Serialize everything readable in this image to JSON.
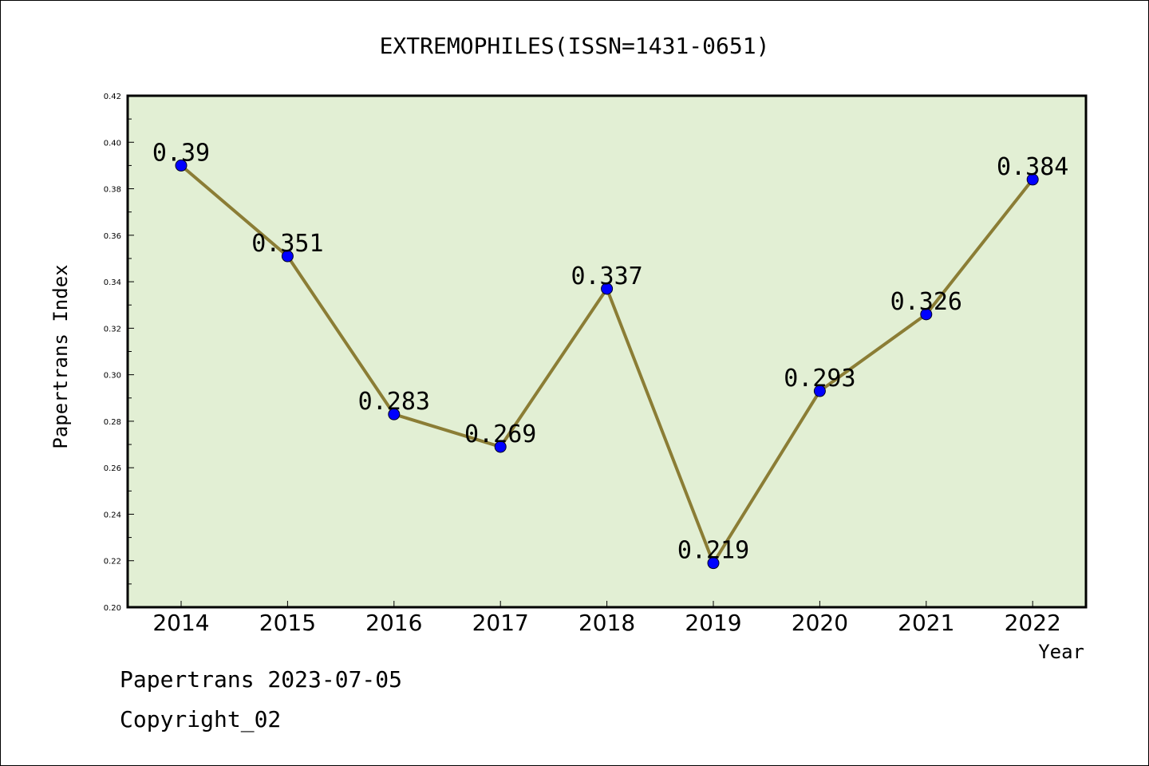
{
  "chart_data": {
    "type": "line",
    "title": "EXTREMOPHILES(ISSN=1431-0651)",
    "xlabel": "Year",
    "ylabel": "Papertrans Index",
    "categories": [
      "2014",
      "2015",
      "2016",
      "2017",
      "2018",
      "2019",
      "2020",
      "2021",
      "2022"
    ],
    "values": [
      0.39,
      0.351,
      0.283,
      0.269,
      0.337,
      0.219,
      0.293,
      0.326,
      0.384
    ],
    "data_labels": [
      "0.39",
      "0.351",
      "0.283",
      "0.269",
      "0.337",
      "0.219",
      "0.293",
      "0.326",
      "0.384"
    ],
    "ylim": [
      0.2,
      0.42
    ],
    "yticks": [
      "0.20",
      "0.22",
      "0.24",
      "0.26",
      "0.28",
      "0.30",
      "0.32",
      "0.34",
      "0.36",
      "0.38",
      "0.40",
      "0.42"
    ],
    "grid": false,
    "colors": {
      "plot_background": "#e2efd4",
      "line": "#8b7d35",
      "marker": "#0000ff"
    }
  },
  "footer": {
    "date_line": "Papertrans 2023-07-05",
    "copyright": "Copyright_02"
  }
}
